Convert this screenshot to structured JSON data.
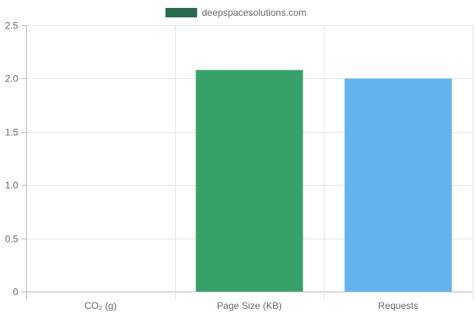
{
  "chart_data": {
    "type": "bar",
    "categories": [
      "CO₂ (g)",
      "Page Size (KB)",
      "Requests"
    ],
    "series": [
      {
        "name": "deepspacesolutions.com",
        "values": [
          0,
          2.08,
          2.0
        ],
        "colors": [
          "#2f6b4f",
          "#38a169",
          "#63b3ed"
        ]
      }
    ],
    "legend": {
      "label": "deepspacesolutions.com",
      "color": "#2a6b4e",
      "position": "top-center"
    },
    "ylim": [
      0,
      2.5
    ],
    "yticks": [
      "0",
      "0.5",
      "1.0",
      "1.5",
      "2.0",
      "2.5"
    ],
    "grid": true,
    "title": "",
    "xlabel": "",
    "ylabel": ""
  }
}
